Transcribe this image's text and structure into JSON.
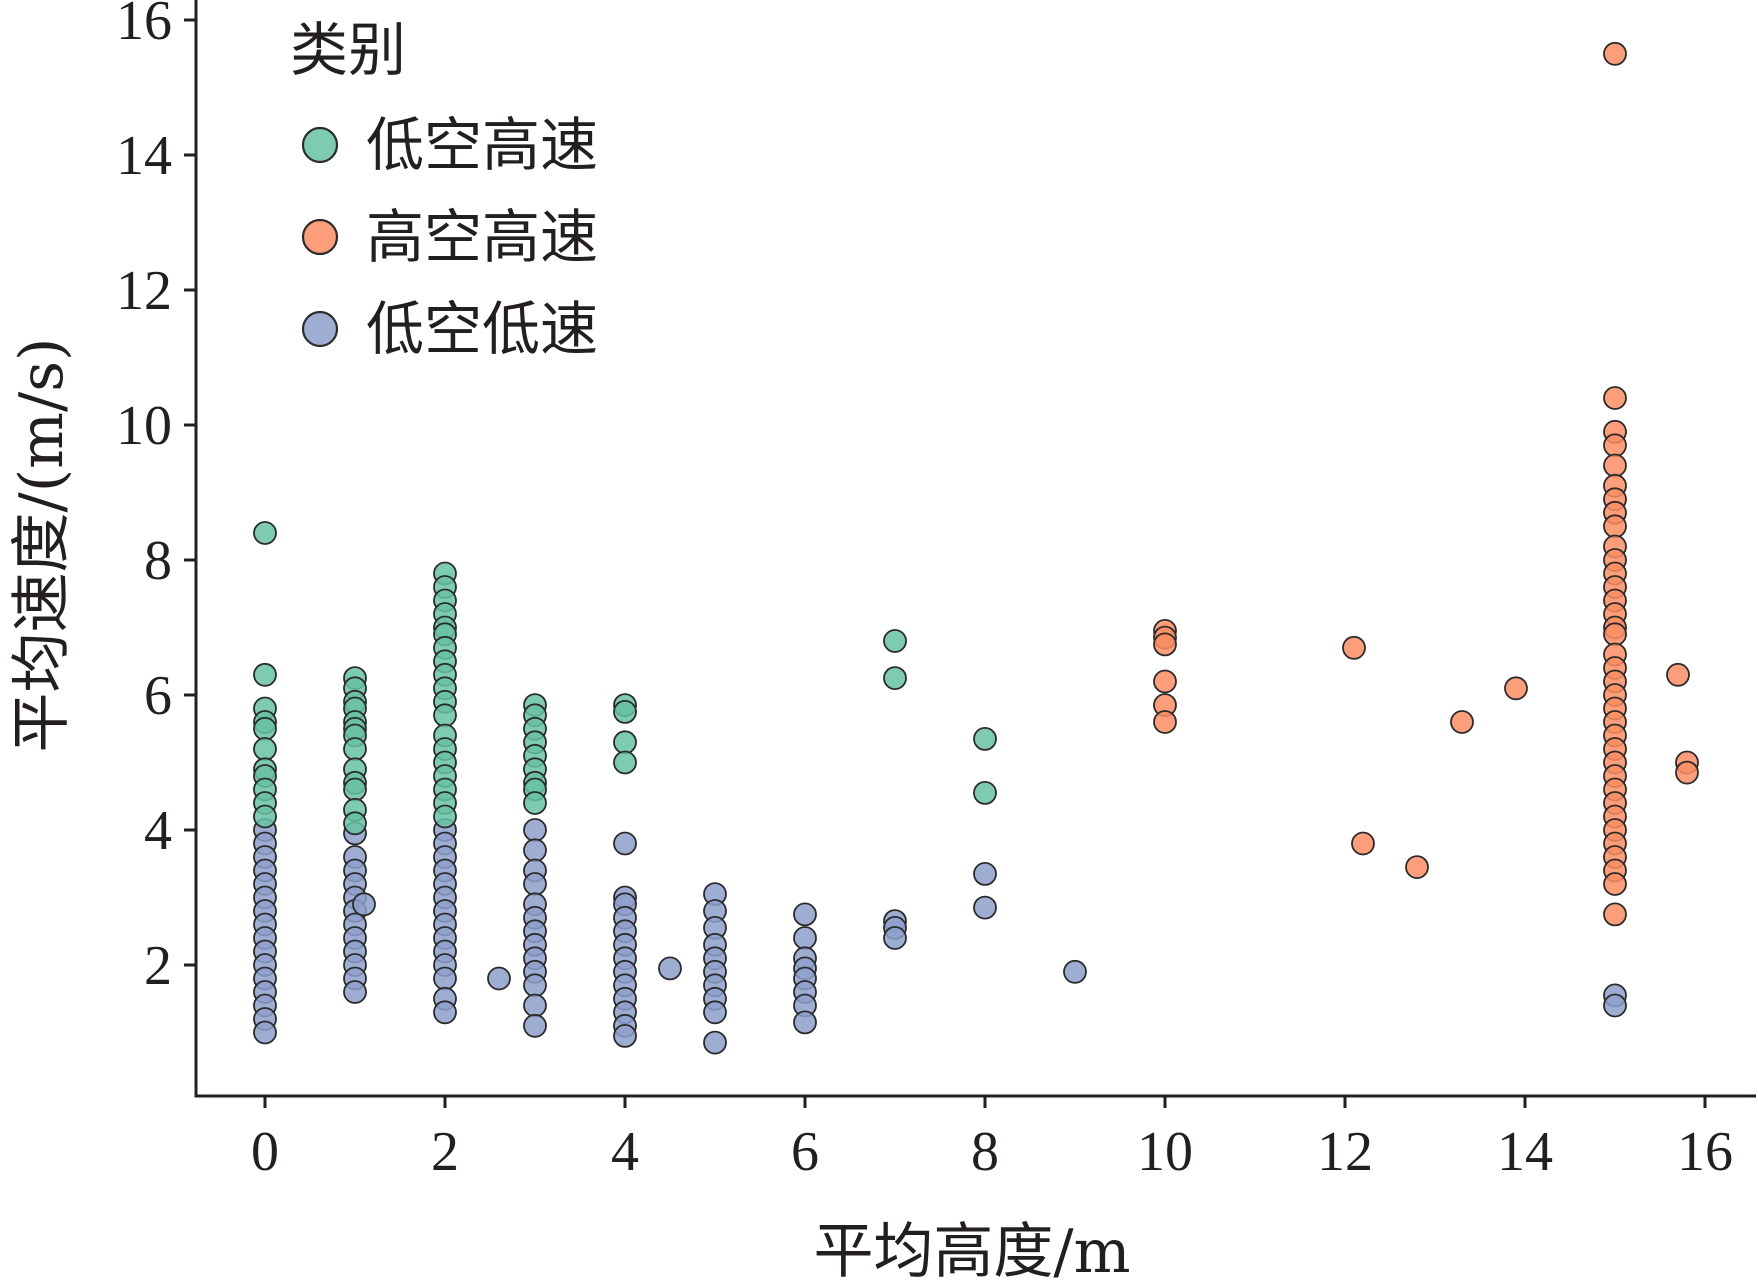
{
  "chart_data": {
    "type": "scatter",
    "title": "",
    "xlabel": "平均高度/m",
    "ylabel": "平均速度/(m/s)",
    "xlim": [
      -0.8,
      16.5
    ],
    "ylim": [
      0,
      16
    ],
    "xticks": [
      "0",
      "2",
      "4",
      "6",
      "8",
      "10",
      "12",
      "14",
      "16"
    ],
    "yticks": [
      "2",
      "4",
      "6",
      "8",
      "10",
      "12",
      "14",
      "16"
    ],
    "grid": false,
    "legend": {
      "title": "类别",
      "position": "top-left"
    },
    "series": [
      {
        "name": "低空高速",
        "color": "#66c2a5",
        "points": [
          [
            0,
            8.4
          ],
          [
            0,
            6.3
          ],
          [
            0,
            5.8
          ],
          [
            0,
            5.6
          ],
          [
            0,
            5.5
          ],
          [
            0,
            5.2
          ],
          [
            0,
            4.9
          ],
          [
            0,
            4.8
          ],
          [
            0,
            4.6
          ],
          [
            0,
            4.4
          ],
          [
            0,
            4.2
          ],
          [
            1,
            6.25
          ],
          [
            1,
            6.1
          ],
          [
            1,
            5.9
          ],
          [
            1,
            5.8
          ],
          [
            1,
            5.6
          ],
          [
            1,
            5.5
          ],
          [
            1,
            5.4
          ],
          [
            1,
            5.2
          ],
          [
            1,
            4.9
          ],
          [
            1,
            4.7
          ],
          [
            1,
            4.6
          ],
          [
            1,
            4.3
          ],
          [
            1,
            4.1
          ],
          [
            2,
            7.8
          ],
          [
            2,
            7.6
          ],
          [
            2,
            7.4
          ],
          [
            2,
            7.2
          ],
          [
            2,
            7.0
          ],
          [
            2,
            6.9
          ],
          [
            2,
            6.7
          ],
          [
            2,
            6.5
          ],
          [
            2,
            6.3
          ],
          [
            2,
            6.1
          ],
          [
            2,
            5.9
          ],
          [
            2,
            5.7
          ],
          [
            2,
            5.4
          ],
          [
            2,
            5.2
          ],
          [
            2,
            5.0
          ],
          [
            2,
            4.8
          ],
          [
            2,
            4.6
          ],
          [
            2,
            4.4
          ],
          [
            2,
            4.2
          ],
          [
            3,
            5.85
          ],
          [
            3,
            5.7
          ],
          [
            3,
            5.5
          ],
          [
            3,
            5.3
          ],
          [
            3,
            5.1
          ],
          [
            3,
            4.9
          ],
          [
            3,
            4.7
          ],
          [
            3,
            4.6
          ],
          [
            3,
            4.4
          ],
          [
            4,
            5.85
          ],
          [
            4,
            5.75
          ],
          [
            4,
            5.3
          ],
          [
            4,
            5.0
          ],
          [
            7,
            6.8
          ],
          [
            7,
            6.25
          ],
          [
            8,
            5.35
          ],
          [
            8,
            4.55
          ]
        ]
      },
      {
        "name": "高空高速",
        "color": "#fc8d62",
        "points": [
          [
            15,
            15.5
          ],
          [
            15,
            10.4
          ],
          [
            15,
            9.9
          ],
          [
            15,
            9.7
          ],
          [
            15,
            9.4
          ],
          [
            15,
            9.1
          ],
          [
            15,
            8.9
          ],
          [
            15,
            8.7
          ],
          [
            15,
            8.5
          ],
          [
            15,
            8.2
          ],
          [
            15,
            8.0
          ],
          [
            15,
            7.8
          ],
          [
            15,
            7.6
          ],
          [
            15,
            7.4
          ],
          [
            15,
            7.2
          ],
          [
            15,
            7.0
          ],
          [
            15,
            6.9
          ],
          [
            15,
            6.6
          ],
          [
            15,
            6.4
          ],
          [
            15,
            6.2
          ],
          [
            15,
            6.0
          ],
          [
            15,
            5.8
          ],
          [
            15,
            5.6
          ],
          [
            15,
            5.4
          ],
          [
            15,
            5.2
          ],
          [
            15,
            5.0
          ],
          [
            15,
            4.8
          ],
          [
            15,
            4.6
          ],
          [
            15,
            4.4
          ],
          [
            15,
            4.2
          ],
          [
            15,
            4.0
          ],
          [
            15,
            3.8
          ],
          [
            15,
            3.6
          ],
          [
            15,
            3.4
          ],
          [
            15,
            3.2
          ],
          [
            15,
            2.75
          ],
          [
            10,
            6.95
          ],
          [
            10,
            6.85
          ],
          [
            10,
            6.75
          ],
          [
            10,
            6.2
          ],
          [
            10,
            5.85
          ],
          [
            10,
            5.6
          ],
          [
            12.1,
            6.7
          ],
          [
            12.2,
            3.8
          ],
          [
            12.8,
            3.45
          ],
          [
            13.3,
            5.6
          ],
          [
            13.9,
            6.1
          ],
          [
            15.7,
            6.3
          ],
          [
            15.8,
            5.0
          ],
          [
            15.8,
            4.85
          ]
        ]
      },
      {
        "name": "低空低速",
        "color": "#8da0cb",
        "points": [
          [
            0,
            4.0
          ],
          [
            0,
            3.8
          ],
          [
            0,
            3.6
          ],
          [
            0,
            3.4
          ],
          [
            0,
            3.2
          ],
          [
            0,
            3.0
          ],
          [
            0,
            2.8
          ],
          [
            0,
            2.6
          ],
          [
            0,
            2.4
          ],
          [
            0,
            2.2
          ],
          [
            0,
            2.0
          ],
          [
            0,
            1.8
          ],
          [
            0,
            1.6
          ],
          [
            0,
            1.4
          ],
          [
            0,
            1.2
          ],
          [
            0,
            1.0
          ],
          [
            1,
            3.95
          ],
          [
            1,
            3.6
          ],
          [
            1,
            3.4
          ],
          [
            1,
            3.2
          ],
          [
            1,
            3.0
          ],
          [
            1,
            2.8
          ],
          [
            1,
            2.6
          ],
          [
            1,
            2.4
          ],
          [
            1,
            2.2
          ],
          [
            1,
            2.0
          ],
          [
            1,
            1.8
          ],
          [
            1,
            1.6
          ],
          [
            1.1,
            2.9
          ],
          [
            2,
            4.0
          ],
          [
            2,
            3.8
          ],
          [
            2,
            3.6
          ],
          [
            2,
            3.4
          ],
          [
            2,
            3.2
          ],
          [
            2,
            3.0
          ],
          [
            2,
            2.8
          ],
          [
            2,
            2.6
          ],
          [
            2,
            2.4
          ],
          [
            2,
            2.2
          ],
          [
            2,
            2.0
          ],
          [
            2,
            1.8
          ],
          [
            2,
            1.5
          ],
          [
            2,
            1.3
          ],
          [
            2.6,
            1.8
          ],
          [
            3,
            4.0
          ],
          [
            3,
            3.7
          ],
          [
            3,
            3.4
          ],
          [
            3,
            3.2
          ],
          [
            3,
            2.9
          ],
          [
            3,
            2.7
          ],
          [
            3,
            2.5
          ],
          [
            3,
            2.3
          ],
          [
            3,
            2.1
          ],
          [
            3,
            1.9
          ],
          [
            3,
            1.7
          ],
          [
            3,
            1.4
          ],
          [
            3,
            1.1
          ],
          [
            4,
            3.8
          ],
          [
            4,
            3.0
          ],
          [
            4,
            2.9
          ],
          [
            4,
            2.7
          ],
          [
            4,
            2.5
          ],
          [
            4,
            2.3
          ],
          [
            4,
            2.1
          ],
          [
            4,
            1.9
          ],
          [
            4,
            1.7
          ],
          [
            4,
            1.5
          ],
          [
            4,
            1.3
          ],
          [
            4,
            1.1
          ],
          [
            4,
            0.95
          ],
          [
            4.5,
            1.95
          ],
          [
            5,
            3.05
          ],
          [
            5,
            2.8
          ],
          [
            5,
            2.55
          ],
          [
            5,
            2.3
          ],
          [
            5,
            2.1
          ],
          [
            5,
            1.9
          ],
          [
            5,
            1.7
          ],
          [
            5,
            1.5
          ],
          [
            5,
            1.3
          ],
          [
            5,
            0.85
          ],
          [
            6,
            2.75
          ],
          [
            6,
            2.4
          ],
          [
            6,
            2.1
          ],
          [
            6,
            1.95
          ],
          [
            6,
            1.8
          ],
          [
            6,
            1.6
          ],
          [
            6,
            1.4
          ],
          [
            6,
            1.15
          ],
          [
            7,
            2.65
          ],
          [
            7,
            2.55
          ],
          [
            7,
            2.4
          ],
          [
            8,
            3.35
          ],
          [
            8,
            2.85
          ],
          [
            9,
            1.9
          ],
          [
            15,
            1.55
          ],
          [
            15,
            1.4
          ]
        ]
      }
    ]
  }
}
